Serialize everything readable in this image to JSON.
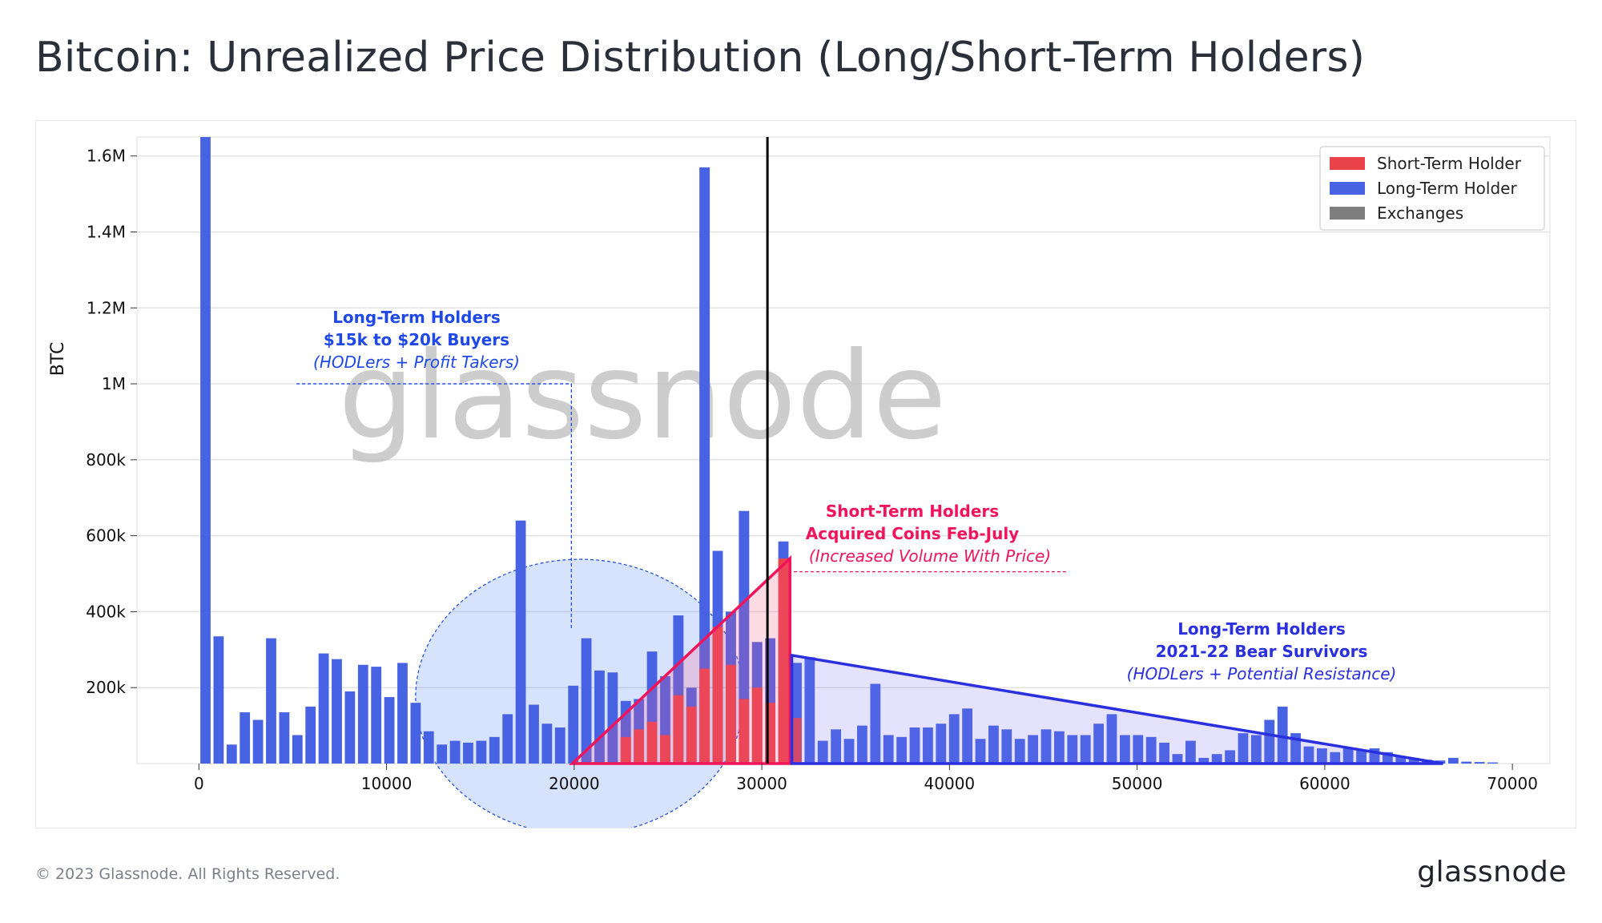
{
  "title": "Bitcoin: Unrealized Price Distribution (Long/Short-Term Holders)",
  "footer": {
    "copyright": "© 2023 Glassnode. All Rights Reserved.",
    "logo_text": "glassnode"
  },
  "watermark": "glassnode",
  "colors": {
    "sth": "#e9424b",
    "lth": "#4763e4",
    "exchanges": "#7f7f7f",
    "lth_buyers_annotation": "#1e48e8",
    "sth_annotation": "#f0145a",
    "bear_annotation": "#2a2fe0",
    "current_price_line": "#000000"
  },
  "annotations": {
    "lth_buyers": {
      "line1": "Long-Term Holders",
      "line2": "$15k to $20k Buyers",
      "line3": "(HODLers + Profit Takers)"
    },
    "sth_feb_july": {
      "line1": "Short-Term Holders",
      "line2": "Acquired Coins Feb-July",
      "line3": "(Increased Volume With Price)"
    },
    "lth_bear": {
      "line1": "Long-Term Holders",
      "line2": "2021-22 Bear Survivors",
      "line3": "(HODLers + Potential Resistance)"
    }
  },
  "chart_data": {
    "type": "bar",
    "ylabel": "BTC",
    "xlabel": "",
    "xlim": [
      -3300,
      72000
    ],
    "ylim": [
      0,
      1650000
    ],
    "bin_width": 700,
    "x_ticks": [
      0,
      10000,
      20000,
      30000,
      40000,
      50000,
      60000,
      70000
    ],
    "x_tick_labels": [
      "0",
      "10000",
      "20000",
      "30000",
      "40000",
      "50000",
      "60000",
      "70000"
    ],
    "y_ticks": [
      200000,
      400000,
      600000,
      800000,
      1000000,
      1200000,
      1400000,
      1600000
    ],
    "y_tick_labels": [
      "200k",
      "400k",
      "600k",
      "800k",
      "1M",
      "1.2M",
      "1.4M",
      "1.6M"
    ],
    "current_price": 30300,
    "legend": {
      "position": "top-right",
      "entries": [
        "Short-Term Holder",
        "Long-Term Holder",
        "Exchanges"
      ]
    },
    "series": [
      {
        "name": "Long-Term Holder",
        "color": "#4763e4",
        "points": [
          [
            350,
            1650000
          ],
          [
            1050,
            335000
          ],
          [
            1750,
            50000
          ],
          [
            2450,
            135000
          ],
          [
            3150,
            115000
          ],
          [
            3850,
            330000
          ],
          [
            4550,
            135000
          ],
          [
            5250,
            75000
          ],
          [
            5950,
            150000
          ],
          [
            6650,
            290000
          ],
          [
            7350,
            275000
          ],
          [
            8050,
            190000
          ],
          [
            8750,
            260000
          ],
          [
            9450,
            255000
          ],
          [
            10150,
            175000
          ],
          [
            10850,
            265000
          ],
          [
            11550,
            160000
          ],
          [
            12250,
            85000
          ],
          [
            12950,
            50000
          ],
          [
            13650,
            60000
          ],
          [
            14350,
            55000
          ],
          [
            15050,
            60000
          ],
          [
            15750,
            70000
          ],
          [
            16450,
            130000
          ],
          [
            17150,
            640000
          ],
          [
            17850,
            155000
          ],
          [
            18550,
            105000
          ],
          [
            19250,
            95000
          ],
          [
            19950,
            205000
          ],
          [
            20650,
            330000
          ],
          [
            21350,
            245000
          ],
          [
            22050,
            240000
          ],
          [
            22750,
            165000
          ],
          [
            23450,
            170000
          ],
          [
            24150,
            295000
          ],
          [
            24850,
            230000
          ],
          [
            25550,
            390000
          ],
          [
            26250,
            200000
          ],
          [
            26950,
            1570000
          ],
          [
            27650,
            560000
          ],
          [
            28350,
            400000
          ],
          [
            29050,
            665000
          ],
          [
            29750,
            320000
          ],
          [
            30450,
            330000
          ],
          [
            31150,
            585000
          ],
          [
            31850,
            265000
          ],
          [
            32550,
            280000
          ],
          [
            33250,
            60000
          ],
          [
            33950,
            90000
          ],
          [
            34650,
            65000
          ],
          [
            35350,
            100000
          ],
          [
            36050,
            210000
          ],
          [
            36750,
            75000
          ],
          [
            37450,
            70000
          ],
          [
            38150,
            95000
          ],
          [
            38850,
            95000
          ],
          [
            39550,
            105000
          ],
          [
            40250,
            130000
          ],
          [
            40950,
            145000
          ],
          [
            41650,
            65000
          ],
          [
            42350,
            100000
          ],
          [
            43050,
            90000
          ],
          [
            43750,
            65000
          ],
          [
            44450,
            75000
          ],
          [
            45150,
            90000
          ],
          [
            45850,
            85000
          ],
          [
            46550,
            75000
          ],
          [
            47250,
            75000
          ],
          [
            47950,
            105000
          ],
          [
            48650,
            130000
          ],
          [
            49350,
            75000
          ],
          [
            50050,
            75000
          ],
          [
            50750,
            70000
          ],
          [
            51450,
            55000
          ],
          [
            52150,
            25000
          ],
          [
            52850,
            60000
          ],
          [
            53550,
            15000
          ],
          [
            54250,
            25000
          ],
          [
            54950,
            35000
          ],
          [
            55650,
            80000
          ],
          [
            56350,
            75000
          ],
          [
            57050,
            115000
          ],
          [
            57750,
            150000
          ],
          [
            58450,
            80000
          ],
          [
            59150,
            45000
          ],
          [
            59850,
            40000
          ],
          [
            60550,
            30000
          ],
          [
            61250,
            40000
          ],
          [
            61950,
            35000
          ],
          [
            62650,
            40000
          ],
          [
            63350,
            30000
          ],
          [
            64050,
            20000
          ],
          [
            64750,
            15000
          ],
          [
            65450,
            10000
          ],
          [
            66150,
            8000
          ],
          [
            66850,
            15000
          ],
          [
            67550,
            5000
          ],
          [
            68250,
            4000
          ],
          [
            68950,
            3000
          ]
        ]
      },
      {
        "name": "Exchanges",
        "color": "#7f7f7f",
        "points": [
          [
            25550,
            390000
          ],
          [
            26950,
            1570000
          ],
          [
            27650,
            560000
          ],
          [
            28350,
            400000
          ],
          [
            29050,
            665000
          ],
          [
            29750,
            320000
          ],
          [
            31850,
            265000
          ]
        ]
      },
      {
        "name": "Short-Term Holder",
        "color": "#e9424b",
        "points": [
          [
            22750,
            70000
          ],
          [
            23450,
            90000
          ],
          [
            24150,
            110000
          ],
          [
            24850,
            75000
          ],
          [
            25550,
            180000
          ],
          [
            26250,
            150000
          ],
          [
            26950,
            250000
          ],
          [
            27650,
            360000
          ],
          [
            28350,
            260000
          ],
          [
            29050,
            170000
          ],
          [
            29750,
            200000
          ],
          [
            30450,
            160000
          ],
          [
            31150,
            540000
          ],
          [
            31850,
            120000
          ]
        ]
      }
    ]
  }
}
